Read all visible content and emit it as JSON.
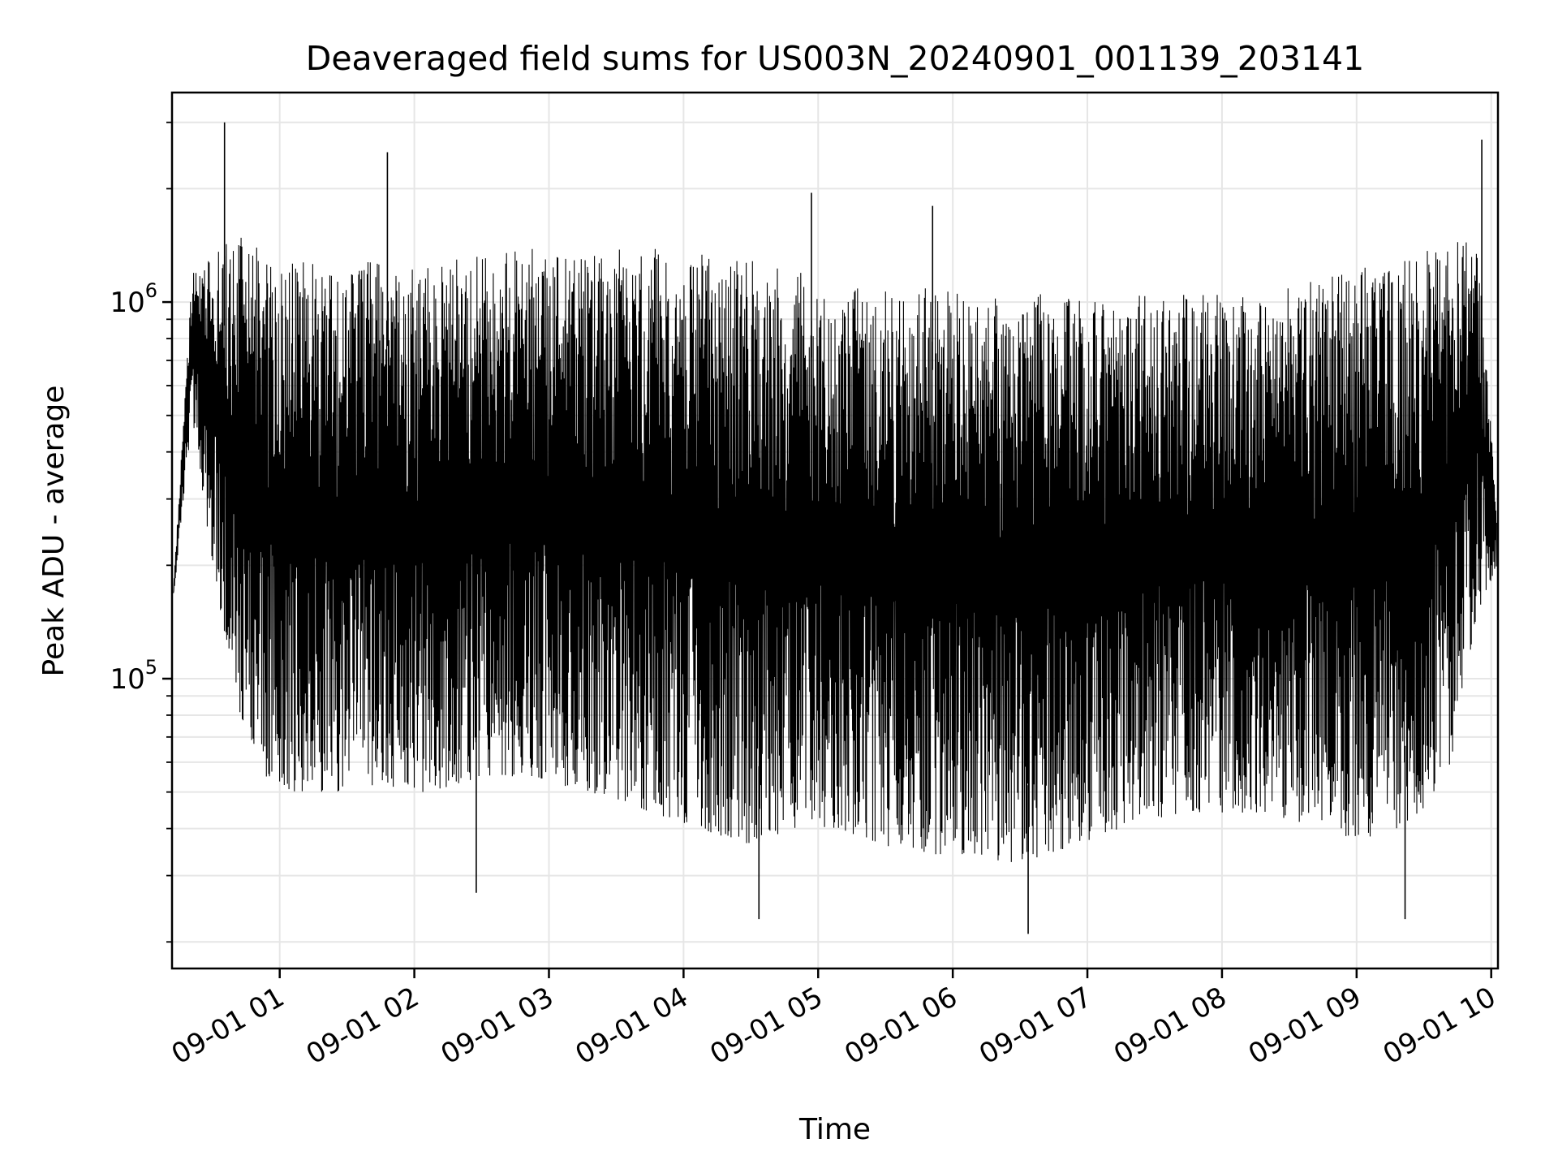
{
  "chart_data": {
    "type": "line",
    "title": "Deaveraged field sums for US003N_20240901_001139_203141",
    "xlabel": "Time",
    "ylabel": "Peak ADU - average",
    "yscale": "log",
    "ylim": [
      17000,
      3600000
    ],
    "xlim": [
      "2024-09-01 00:12",
      "2024-09-01 10:03"
    ],
    "grid": true,
    "line_color": "#000000",
    "x_ticks": [
      "09-01 01",
      "09-01 02",
      "09-01 03",
      "09-01 04",
      "09-01 05",
      "09-01 06",
      "09-01 07",
      "09-01 08",
      "09-01 09",
      "09-01 10"
    ],
    "y_ticks": [
      {
        "value": 100000,
        "base": "10",
        "exp": "5"
      },
      {
        "value": 1000000,
        "base": "10",
        "exp": "6"
      }
    ],
    "series": [
      {
        "time_hours": [
          0.2,
          0.35,
          0.5,
          0.7,
          0.9,
          1.1,
          1.3,
          1.5,
          1.7,
          1.9,
          2.1,
          2.3,
          2.5,
          2.7,
          2.9,
          3.1,
          3.3,
          3.5,
          3.7,
          3.9,
          4.1,
          4.3,
          4.5,
          4.7,
          4.9,
          5.1,
          5.3,
          5.5,
          5.7,
          5.9,
          6.1,
          6.3,
          6.5,
          6.7,
          6.9,
          7.1,
          7.3,
          7.5,
          7.7,
          7.9,
          8.1,
          8.3,
          8.5,
          8.7,
          8.9,
          9.1,
          9.3,
          9.5,
          9.7,
          9.9,
          10.05
        ],
        "upper": [
          150000,
          1200000,
          1400000,
          1500000,
          1350000,
          1300000,
          1250000,
          1200000,
          1300000,
          1250000,
          1250000,
          1300000,
          1350000,
          1400000,
          1400000,
          1400000,
          1400000,
          1400000,
          1450000,
          1400000,
          1350000,
          1300000,
          1300000,
          1250000,
          1200000,
          1150000,
          1150000,
          1100000,
          1100000,
          1100000,
          1050000,
          1050000,
          1050000,
          1050000,
          1050000,
          1050000,
          1050000,
          1050000,
          1050000,
          1050000,
          1050000,
          1050000,
          1100000,
          1150000,
          1200000,
          1250000,
          1300000,
          1400000,
          1450000,
          1500000,
          250000
        ],
        "lower": [
          150000,
          500000,
          200000,
          80000,
          55000,
          50000,
          50000,
          50000,
          52000,
          50000,
          50000,
          52000,
          55000,
          55000,
          55000,
          52000,
          50000,
          48000,
          45000,
          42000,
          40000,
          38000,
          36000,
          38000,
          40000,
          40000,
          38000,
          36000,
          35000,
          34000,
          34000,
          33000,
          32000,
          34000,
          36000,
          38000,
          40000,
          42000,
          44000,
          44000,
          44000,
          44000,
          42000,
          40000,
          38000,
          38000,
          40000,
          45000,
          60000,
          150000,
          200000
        ],
        "spikes": [
          {
            "t": 0.59,
            "v": 3000000
          },
          {
            "t": 1.8,
            "v": 2500000
          },
          {
            "t": 4.95,
            "v": 1950000
          },
          {
            "t": 5.85,
            "v": 1800000
          },
          {
            "t": 9.93,
            "v": 2700000
          },
          {
            "t": 2.46,
            "v": 27000
          },
          {
            "t": 4.56,
            "v": 23000
          },
          {
            "t": 6.56,
            "v": 21000
          },
          {
            "t": 9.36,
            "v": 23000
          }
        ]
      }
    ]
  }
}
